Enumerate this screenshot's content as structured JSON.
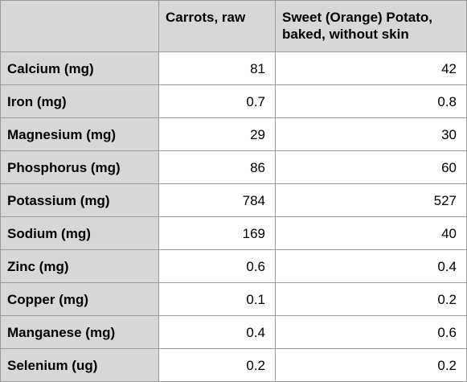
{
  "chart_data": {
    "type": "table",
    "columns": [
      "",
      "Carrots, raw",
      "Sweet (Orange) Potato, baked, without skin"
    ],
    "rows": [
      {
        "label": "Calcium (mg)",
        "values": [
          "81",
          "42"
        ]
      },
      {
        "label": "Iron (mg)",
        "values": [
          "0.7",
          "0.8"
        ]
      },
      {
        "label": "Magnesium (mg)",
        "values": [
          "29",
          "30"
        ]
      },
      {
        "label": "Phosphorus (mg)",
        "values": [
          "86",
          "60"
        ]
      },
      {
        "label": "Potassium (mg)",
        "values": [
          "784",
          "527"
        ]
      },
      {
        "label": "Sodium (mg)",
        "values": [
          "169",
          "40"
        ]
      },
      {
        "label": "Zinc (mg)",
        "values": [
          "0.6",
          "0.4"
        ]
      },
      {
        "label": "Copper (mg)",
        "values": [
          "0.1",
          "0.2"
        ]
      },
      {
        "label": "Manganese (mg)",
        "values": [
          "0.4",
          "0.6"
        ]
      },
      {
        "label": "Selenium (ug)",
        "values": [
          "0.2",
          "0.2"
        ]
      }
    ]
  },
  "colors": {
    "header_bg": "#d7d7d7",
    "cell_bg": "#ffffff",
    "border": "#9b9b9b"
  }
}
